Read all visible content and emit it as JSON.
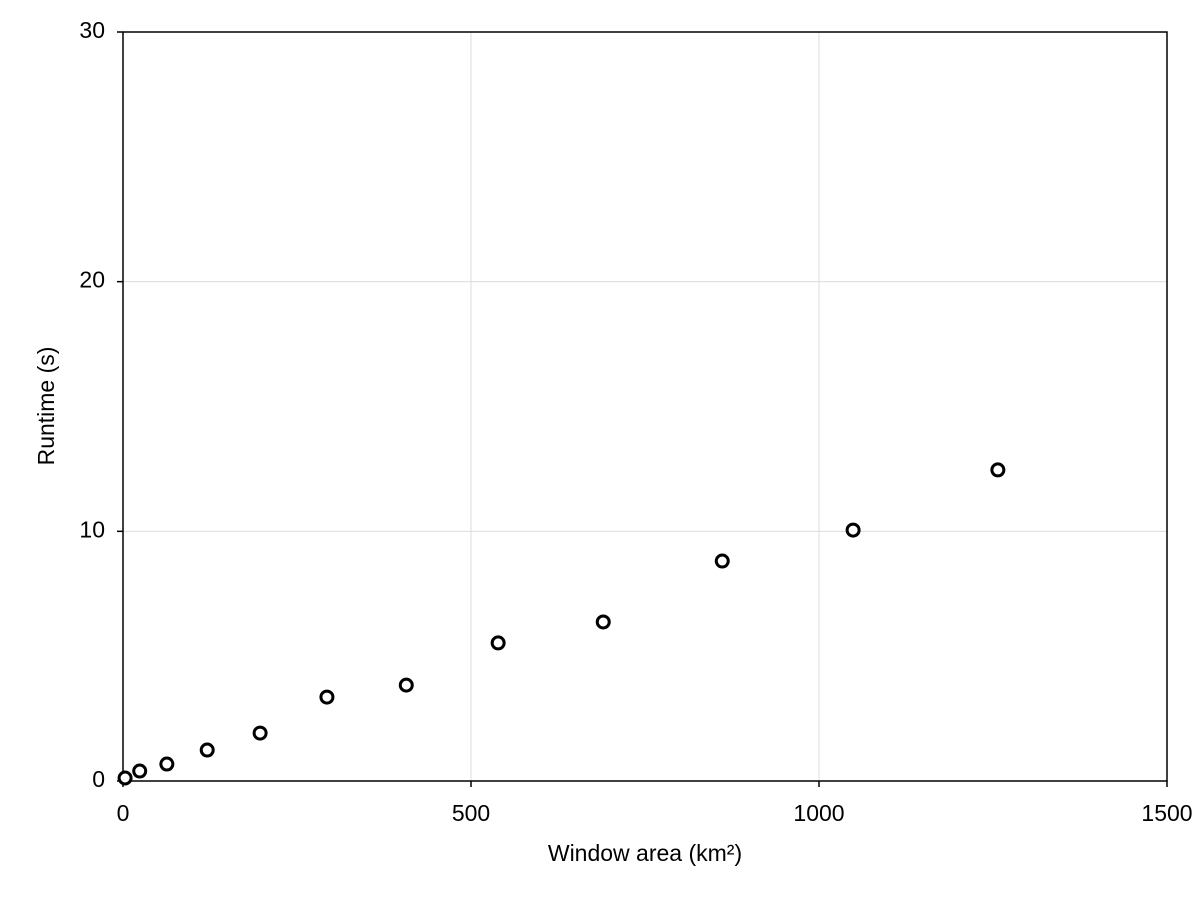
{
  "chart_data": {
    "type": "scatter",
    "xlabel": "Window area (km²)",
    "ylabel": "Runtime (s)",
    "series": [
      {
        "color": "#000000",
        "x": [
          3,
          24,
          63,
          121,
          197,
          293,
          407,
          539,
          690,
          861,
          1049,
          1257
        ],
        "values": [
          0.12,
          0.4,
          0.68,
          1.24,
          1.92,
          3.36,
          3.84,
          5.53,
          6.37,
          8.81,
          10.05,
          12.46
        ]
      }
    ],
    "xlim": [
      0,
      1500
    ],
    "xticks": [
      0,
      500,
      1000,
      1500
    ],
    "ylim": [
      0,
      30
    ],
    "yticks": [
      0,
      10,
      20,
      30
    ],
    "grid": true
  }
}
